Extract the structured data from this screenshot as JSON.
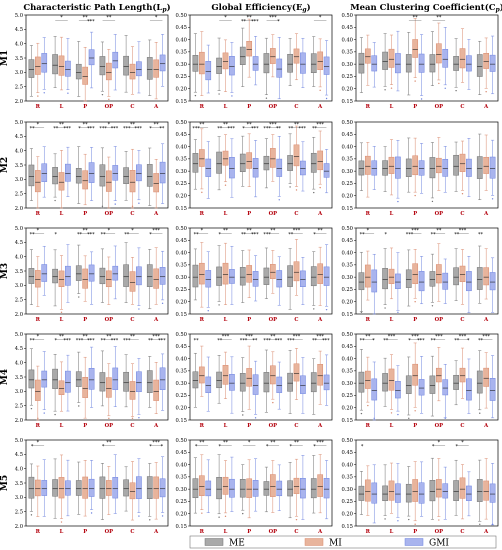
{
  "figure": {
    "columns": [
      {
        "key": "lp",
        "title": "Characteristic Path Length(L",
        "sub": "p",
        "tail": ")"
      },
      {
        "key": "eg",
        "title": "Global Efficiency(E",
        "sub": "g",
        "tail": ")"
      },
      {
        "key": "cp",
        "title": "Mean Clustering Coefficient(C",
        "sub": "p",
        "tail": ")"
      }
    ],
    "rows": [
      "M1",
      "M2",
      "M3",
      "M4",
      "M5"
    ],
    "categories": [
      "R",
      "L",
      "P",
      "OP",
      "C",
      "A"
    ]
  },
  "legend": [
    {
      "name": "ME",
      "color": "#a9a9a9"
    },
    {
      "name": "MI",
      "color": "#e8b49c"
    },
    {
      "name": "GMI",
      "color": "#a9b4ee"
    }
  ],
  "chart_data": [
    {
      "type": "box",
      "row": "M1",
      "metric": "Lp",
      "ylim": [
        2.0,
        5.0
      ],
      "yticks": [
        "2.0",
        "2.5",
        "3.0",
        "3.5",
        "4.0",
        "4.5",
        "5.0"
      ],
      "series": [
        {
          "name": "ME",
          "medians": [
            3.1,
            3.25,
            3.0,
            3.2,
            3.2,
            3.1
          ]
        },
        {
          "name": "MI",
          "medians": [
            3.2,
            3.2,
            2.85,
            3.0,
            3.0,
            3.1
          ]
        },
        {
          "name": "GMI",
          "medians": [
            3.3,
            3.1,
            3.5,
            3.4,
            3.1,
            3.3
          ]
        }
      ],
      "sig": [
        [
          "",
          "",
          ""
        ],
        [
          "",
          "*",
          ""
        ],
        [
          "",
          "**",
          "***"
        ],
        [
          "",
          "**",
          ""
        ],
        [
          "",
          "",
          ""
        ],
        [
          "",
          "*",
          ""
        ]
      ]
    },
    {
      "type": "box",
      "row": "M1",
      "metric": "Eg",
      "ylim": [
        0.15,
        0.5
      ],
      "yticks": [
        "0.15",
        "0.20",
        "0.25",
        "0.30",
        "0.35",
        "0.40",
        "0.45",
        "0.50"
      ],
      "series": [
        {
          "name": "ME",
          "medians": [
            0.3,
            0.29,
            0.33,
            0.3,
            0.3,
            0.3
          ]
        },
        {
          "name": "MI",
          "medians": [
            0.3,
            0.31,
            0.36,
            0.33,
            0.33,
            0.31
          ]
        },
        {
          "name": "GMI",
          "medians": [
            0.27,
            0.29,
            0.3,
            0.28,
            0.3,
            0.29
          ]
        }
      ],
      "sig": [
        [
          "",
          "",
          ""
        ],
        [
          "",
          "*",
          ""
        ],
        [
          "**",
          "**",
          "***"
        ],
        [
          "",
          "***",
          "*"
        ],
        [
          "",
          "",
          ""
        ],
        [
          "",
          "*",
          ""
        ]
      ]
    },
    {
      "type": "box",
      "row": "M1",
      "metric": "Cp",
      "ylim": [
        0.15,
        0.5
      ],
      "yticks": [
        "0.15",
        "0.20",
        "0.25",
        "0.30",
        "0.35",
        "0.40",
        "0.45",
        "0.50"
      ],
      "series": [
        {
          "name": "ME",
          "medians": [
            0.3,
            0.31,
            0.3,
            0.3,
            0.3,
            0.29
          ]
        },
        {
          "name": "MI",
          "medians": [
            0.33,
            0.32,
            0.36,
            0.34,
            0.32,
            0.31
          ]
        },
        {
          "name": "GMI",
          "medians": [
            0.3,
            0.3,
            0.3,
            0.32,
            0.3,
            0.3
          ]
        }
      ],
      "sig": [
        [
          "",
          "",
          ""
        ],
        [
          "",
          "",
          ""
        ],
        [
          "",
          "**",
          ""
        ],
        [
          "",
          "**",
          ""
        ],
        [
          "",
          "",
          ""
        ],
        [
          "",
          "",
          ""
        ]
      ]
    },
    {
      "type": "box",
      "row": "M2",
      "metric": "Lp",
      "ylim": [
        2.0,
        5.0
      ],
      "yticks": [
        "2.0",
        "2.5",
        "3.0",
        "3.5",
        "4.0",
        "4.5",
        "5.0"
      ],
      "series": [
        {
          "name": "ME",
          "medians": [
            3.1,
            3.1,
            3.1,
            3.1,
            3.1,
            3.1
          ]
        },
        {
          "name": "MI",
          "medians": [
            2.9,
            2.9,
            2.95,
            2.9,
            2.9,
            2.85
          ]
        },
        {
          "name": "GMI",
          "medians": [
            3.2,
            3.2,
            3.2,
            3.2,
            3.2,
            3.2
          ]
        }
      ],
      "sig": [
        [
          "**",
          "*",
          ""
        ],
        [
          "**",
          "**",
          "***"
        ],
        [
          "*",
          "**",
          "***"
        ],
        [
          "***",
          "*",
          "***"
        ],
        [
          "***",
          "**",
          "***"
        ],
        [
          "*",
          "**",
          "**"
        ]
      ]
    },
    {
      "type": "box",
      "row": "M2",
      "metric": "Eg",
      "ylim": [
        0.15,
        0.5
      ],
      "yticks": [
        "0.15",
        "0.20",
        "0.25",
        "0.30",
        "0.35",
        "0.40",
        "0.45",
        "0.50"
      ],
      "series": [
        {
          "name": "ME",
          "medians": [
            0.33,
            0.33,
            0.33,
            0.33,
            0.33,
            0.33
          ]
        },
        {
          "name": "MI",
          "medians": [
            0.35,
            0.35,
            0.34,
            0.35,
            0.36,
            0.34
          ]
        },
        {
          "name": "GMI",
          "medians": [
            0.31,
            0.31,
            0.31,
            0.31,
            0.31,
            0.3
          ]
        }
      ],
      "sig": [
        [
          "***",
          "**",
          ""
        ],
        [
          "**",
          "**",
          "***"
        ],
        [
          "*",
          "**",
          "***"
        ],
        [
          "***",
          "***",
          "**"
        ],
        [
          "**",
          "**",
          "***"
        ],
        [
          "**",
          "***",
          ""
        ]
      ]
    },
    {
      "type": "box",
      "row": "M2",
      "metric": "Cp",
      "ylim": [
        0.15,
        0.5
      ],
      "yticks": [
        "0.15",
        "0.20",
        "0.25",
        "0.30",
        "0.35",
        "0.40",
        "0.45",
        "0.50"
      ],
      "series": [
        {
          "name": "ME",
          "medians": [
            0.31,
            0.31,
            0.31,
            0.31,
            0.32,
            0.31
          ]
        },
        {
          "name": "MI",
          "medians": [
            0.32,
            0.32,
            0.32,
            0.32,
            0.33,
            0.32
          ]
        },
        {
          "name": "GMI",
          "medians": [
            0.31,
            0.31,
            0.31,
            0.31,
            0.31,
            0.31
          ]
        }
      ],
      "sig": [
        [
          "",
          "",
          ""
        ],
        [
          "",
          "",
          ""
        ],
        [
          "",
          "",
          ""
        ],
        [
          "",
          "",
          ""
        ],
        [
          "",
          "",
          ""
        ],
        [
          "",
          "",
          ""
        ]
      ]
    },
    {
      "type": "box",
      "row": "M3",
      "metric": "Lp",
      "ylim": [
        2.0,
        5.0
      ],
      "yticks": [
        "2.0",
        "2.5",
        "3.0",
        "3.5",
        "4.0",
        "4.5",
        "5.0"
      ],
      "series": [
        {
          "name": "ME",
          "medians": [
            3.3,
            3.3,
            3.4,
            3.3,
            3.3,
            3.3
          ]
        },
        {
          "name": "MI",
          "medians": [
            3.2,
            3.2,
            3.2,
            3.2,
            3.1,
            3.2
          ]
        },
        {
          "name": "GMI",
          "medians": [
            3.4,
            3.3,
            3.4,
            3.4,
            3.3,
            3.3
          ]
        }
      ],
      "sig": [
        [
          "**",
          "*",
          ""
        ],
        [
          "*",
          "",
          ""
        ],
        [
          "**",
          "**",
          "***"
        ],
        [
          "**",
          "*",
          ""
        ],
        [
          "**",
          "*",
          ""
        ],
        [
          "*",
          "***",
          ""
        ]
      ]
    },
    {
      "type": "box",
      "row": "M3",
      "metric": "Eg",
      "ylim": [
        0.15,
        0.5
      ],
      "yticks": [
        "0.15",
        "0.20",
        "0.25",
        "0.30",
        "0.35",
        "0.40",
        "0.45",
        "0.50"
      ],
      "series": [
        {
          "name": "ME",
          "medians": [
            0.3,
            0.3,
            0.3,
            0.3,
            0.3,
            0.3
          ]
        },
        {
          "name": "MI",
          "medians": [
            0.31,
            0.31,
            0.31,
            0.32,
            0.32,
            0.31
          ]
        },
        {
          "name": "GMI",
          "medians": [
            0.29,
            0.3,
            0.29,
            0.29,
            0.29,
            0.3
          ]
        }
      ],
      "sig": [
        [
          "**",
          "*",
          ""
        ],
        [
          "*",
          "**",
          ""
        ],
        [
          "**",
          "**",
          "***"
        ],
        [
          "***",
          "**",
          ""
        ],
        [
          "**",
          "***",
          ""
        ],
        [
          "*",
          "**",
          ""
        ]
      ]
    },
    {
      "type": "box",
      "row": "M3",
      "metric": "Cp",
      "ylim": [
        0.15,
        0.5
      ],
      "yticks": [
        "0.15",
        "0.20",
        "0.25",
        "0.30",
        "0.35",
        "0.40",
        "0.45",
        "0.50"
      ],
      "series": [
        {
          "name": "ME",
          "medians": [
            0.28,
            0.29,
            0.29,
            0.29,
            0.3,
            0.29
          ]
        },
        {
          "name": "MI",
          "medians": [
            0.3,
            0.3,
            0.31,
            0.31,
            0.31,
            0.3
          ]
        },
        {
          "name": "GMI",
          "medians": [
            0.28,
            0.28,
            0.28,
            0.28,
            0.28,
            0.28
          ]
        }
      ],
      "sig": [
        [
          "**",
          "*",
          ""
        ],
        [
          "*",
          "",
          ""
        ],
        [
          "***",
          "***",
          ""
        ],
        [
          "**",
          "**",
          ""
        ],
        [
          "**",
          "***",
          ""
        ],
        [
          "**",
          "",
          ""
        ]
      ]
    },
    {
      "type": "box",
      "row": "M4",
      "metric": "Lp",
      "ylim": [
        2.0,
        5.0
      ],
      "yticks": [
        "2.0",
        "2.5",
        "3.0",
        "3.5",
        "4.0",
        "4.5",
        "5.0"
      ],
      "series": [
        {
          "name": "ME",
          "medians": [
            3.4,
            3.4,
            3.4,
            3.3,
            3.3,
            3.3
          ]
        },
        {
          "name": "MI",
          "medians": [
            3.0,
            3.1,
            3.1,
            3.1,
            3.0,
            3.0
          ]
        },
        {
          "name": "GMI",
          "medians": [
            3.4,
            3.3,
            3.4,
            3.4,
            3.3,
            3.4
          ]
        }
      ],
      "sig": [
        [
          "**",
          "*",
          ""
        ],
        [
          "*",
          "**",
          "***"
        ],
        [
          "***",
          "**",
          "***"
        ],
        [
          "**",
          "**",
          "***"
        ],
        [
          "***",
          "**",
          ""
        ],
        [
          "**",
          "***",
          "***"
        ]
      ]
    },
    {
      "type": "box",
      "row": "M4",
      "metric": "Eg",
      "ylim": [
        0.15,
        0.5
      ],
      "yticks": [
        "0.15",
        "0.20",
        "0.25",
        "0.30",
        "0.35",
        "0.40",
        "0.45",
        "0.50"
      ],
      "series": [
        {
          "name": "ME",
          "medians": [
            0.31,
            0.31,
            0.3,
            0.3,
            0.3,
            0.3
          ]
        },
        {
          "name": "MI",
          "medians": [
            0.33,
            0.33,
            0.32,
            0.33,
            0.34,
            0.33
          ]
        },
        {
          "name": "GMI",
          "medians": [
            0.29,
            0.3,
            0.29,
            0.29,
            0.29,
            0.3
          ]
        }
      ],
      "sig": [
        [
          "**",
          "",
          ""
        ],
        [
          "**",
          "***",
          ""
        ],
        [
          "***",
          "***",
          "**"
        ],
        [
          "***",
          "**",
          "***"
        ],
        [
          "***",
          "***",
          ""
        ],
        [
          "**",
          "***",
          "***"
        ]
      ]
    },
    {
      "type": "box",
      "row": "M4",
      "metric": "Cp",
      "ylim": [
        0.15,
        0.5
      ],
      "yticks": [
        "0.15",
        "0.20",
        "0.25",
        "0.30",
        "0.35",
        "0.40",
        "0.45",
        "0.50"
      ],
      "series": [
        {
          "name": "ME",
          "medians": [
            0.3,
            0.3,
            0.29,
            0.29,
            0.3,
            0.3
          ]
        },
        {
          "name": "MI",
          "medians": [
            0.31,
            0.31,
            0.33,
            0.33,
            0.33,
            0.32
          ]
        },
        {
          "name": "GMI",
          "medians": [
            0.27,
            0.27,
            0.28,
            0.28,
            0.27,
            0.27
          ]
        }
      ],
      "sig": [
        [
          "**",
          "**",
          "*"
        ],
        [
          "**",
          "***",
          ""
        ],
        [
          "*",
          "***",
          "***"
        ],
        [
          "**",
          "***",
          ""
        ],
        [
          "**",
          "***",
          "*"
        ],
        [
          "**",
          "***",
          ""
        ]
      ]
    },
    {
      "type": "box",
      "row": "M5",
      "metric": "Lp",
      "ylim": [
        2.0,
        5.0
      ],
      "yticks": [
        "2.0",
        "2.5",
        "3.0",
        "3.5",
        "4.0",
        "4.5",
        "5.0"
      ],
      "series": [
        {
          "name": "ME",
          "medians": [
            3.3,
            3.3,
            3.3,
            3.3,
            3.3,
            3.3
          ]
        },
        {
          "name": "MI",
          "medians": [
            3.3,
            3.3,
            3.3,
            3.3,
            3.2,
            3.3
          ]
        },
        {
          "name": "GMI",
          "medians": [
            3.3,
            3.3,
            3.3,
            3.3,
            3.3,
            3.3
          ]
        }
      ],
      "sig": [
        [
          "*",
          "*",
          ""
        ],
        [
          "",
          "",
          ""
        ],
        [
          "",
          "",
          ""
        ],
        [
          "*",
          "**",
          ""
        ],
        [
          "",
          "",
          ""
        ],
        [
          "*",
          "***",
          "*"
        ]
      ]
    },
    {
      "type": "box",
      "row": "M5",
      "metric": "Eg",
      "ylim": [
        0.15,
        0.5
      ],
      "yticks": [
        "0.15",
        "0.20",
        "0.25",
        "0.30",
        "0.35",
        "0.40",
        "0.45",
        "0.50"
      ],
      "series": [
        {
          "name": "ME",
          "medians": [
            0.3,
            0.3,
            0.3,
            0.3,
            0.3,
            0.3
          ]
        },
        {
          "name": "MI",
          "medians": [
            0.31,
            0.31,
            0.3,
            0.31,
            0.31,
            0.31
          ]
        },
        {
          "name": "GMI",
          "medians": [
            0.3,
            0.3,
            0.3,
            0.3,
            0.3,
            0.3
          ]
        }
      ],
      "sig": [
        [
          "*",
          "**",
          ""
        ],
        [
          "*",
          "**",
          ""
        ],
        [
          "",
          "*",
          ""
        ],
        [
          "*",
          "**",
          ""
        ],
        [
          "*",
          "**",
          ""
        ],
        [
          "*",
          "***",
          ""
        ]
      ]
    },
    {
      "type": "box",
      "row": "M5",
      "metric": "Cp",
      "ylim": [
        0.15,
        0.5
      ],
      "yticks": [
        "0.15",
        "0.20",
        "0.25",
        "0.30",
        "0.35",
        "0.40",
        "0.45",
        "0.50"
      ],
      "series": [
        {
          "name": "ME",
          "medians": [
            0.28,
            0.28,
            0.28,
            0.29,
            0.29,
            0.29
          ]
        },
        {
          "name": "MI",
          "medians": [
            0.29,
            0.29,
            0.29,
            0.3,
            0.3,
            0.29
          ]
        },
        {
          "name": "GMI",
          "medians": [
            0.28,
            0.28,
            0.28,
            0.29,
            0.28,
            0.28
          ]
        }
      ],
      "sig": [
        [
          "*",
          "",
          ""
        ],
        [
          "",
          "",
          ""
        ],
        [
          "",
          "",
          ""
        ],
        [
          "*",
          "*",
          ""
        ],
        [
          "*",
          "*",
          ""
        ],
        [
          "",
          "",
          ""
        ]
      ]
    }
  ]
}
